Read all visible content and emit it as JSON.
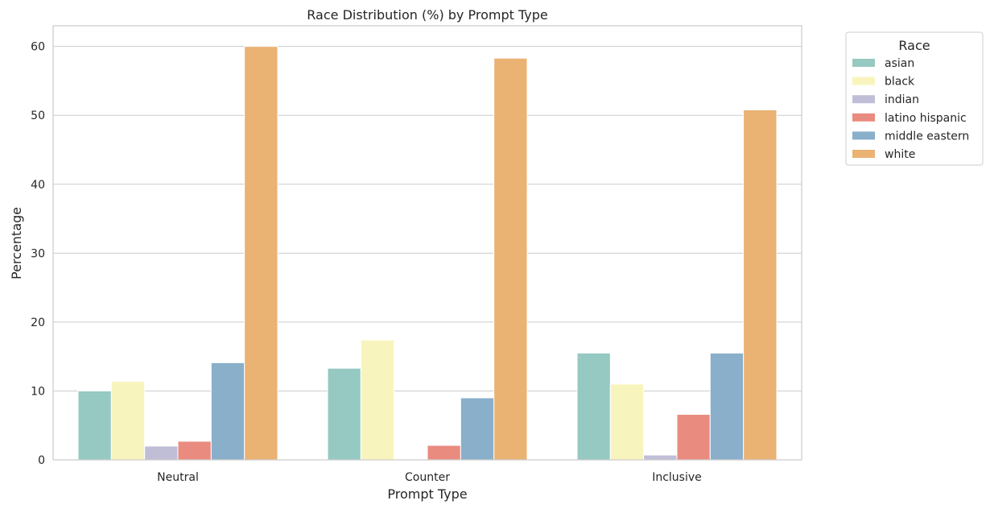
{
  "chart_data": {
    "type": "bar",
    "title": "Race Distribution (%) by Prompt Type",
    "xlabel": "Prompt Type",
    "ylabel": "Percentage",
    "categories": [
      "Neutral",
      "Counter",
      "Inclusive"
    ],
    "ylim": [
      0,
      63
    ],
    "yticks": [
      0,
      10,
      20,
      30,
      40,
      50,
      60
    ],
    "grid": "horizontal",
    "legend": {
      "title": "Race",
      "placement": "outside-top-right"
    },
    "series": [
      {
        "name": "asian",
        "color": "#96c9c1",
        "values": [
          10.0,
          13.3,
          15.5
        ]
      },
      {
        "name": "black",
        "color": "#f7f5bd",
        "values": [
          11.4,
          17.4,
          11.0
        ]
      },
      {
        "name": "indian",
        "color": "#c0bed7",
        "values": [
          2.0,
          0.0,
          0.7
        ]
      },
      {
        "name": "latino hispanic",
        "color": "#ea8b7f",
        "values": [
          2.7,
          2.1,
          6.6
        ]
      },
      {
        "name": "middle eastern",
        "color": "#89afca",
        "values": [
          14.1,
          9.0,
          15.5
        ]
      },
      {
        "name": "white",
        "color": "#eab273",
        "values": [
          60.0,
          58.3,
          50.8
        ]
      }
    ]
  }
}
